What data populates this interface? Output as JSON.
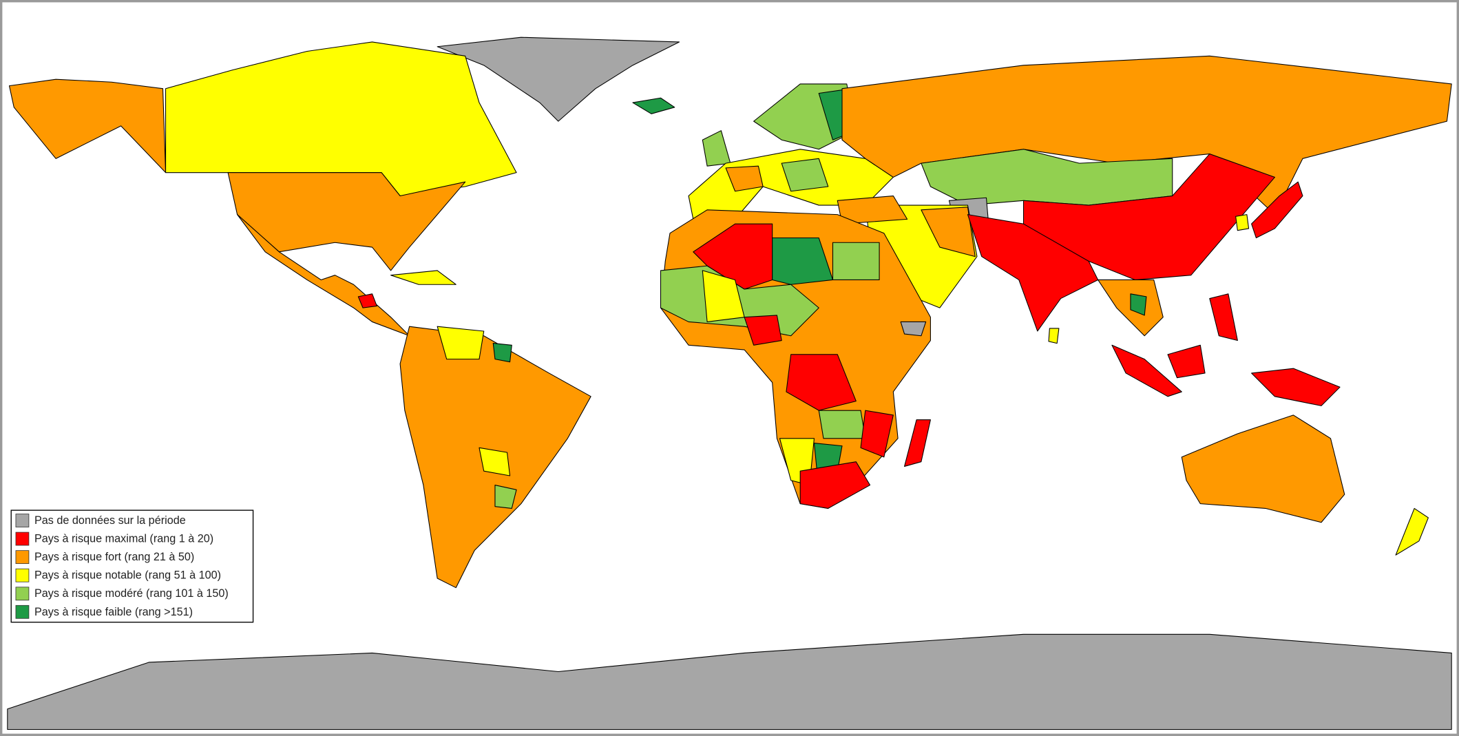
{
  "legend": {
    "items": [
      {
        "label": "Pas de données sur la période",
        "color": "#a6a6a6"
      },
      {
        "label": "Pays à risque maximal (rang 1 à 20)",
        "color": "#ff0000"
      },
      {
        "label": "Pays à risque fort (rang 21 à 50)",
        "color": "#ff9900"
      },
      {
        "label": "Pays à risque notable (rang 51 à 100)",
        "color": "#ffff00"
      },
      {
        "label": "Pays à risque modéré (rang 101 à 150)",
        "color": "#92d050"
      },
      {
        "label": "Pays à risque faible (rang >151)",
        "color": "#1e9a45"
      }
    ]
  }
}
